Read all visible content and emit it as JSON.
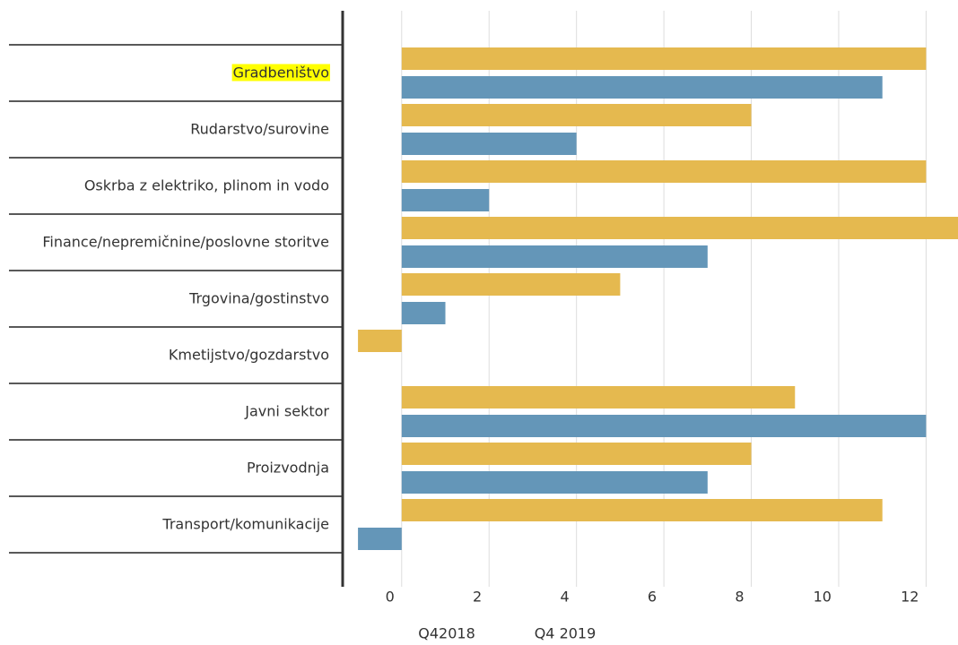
{
  "chart_data": {
    "type": "hbar",
    "categories": [
      "Gradbeništvo",
      "Rudarstvo/surovine",
      "Oskrba z elektriko, plinom in vodo",
      "Finance/nepremičnine/poslovne storitve",
      "Trgovina/gostinstvo",
      "Kmetijstvo/gozdarstvo",
      "Javni sektor",
      "Proizvodnja",
      "Transport/komunikacije"
    ],
    "series": [
      {
        "name": "Q42018",
        "color": "#e5b94f",
        "values": [
          12,
          8,
          12,
          13,
          5,
          -1,
          9,
          8,
          11
        ]
      },
      {
        "name": "Q4 2019",
        "color": "#6496b8",
        "values": [
          11,
          4,
          2,
          7,
          1,
          0,
          12,
          7,
          -1
        ]
      }
    ],
    "xlim": [
      -1.33,
      12.73
    ],
    "xticks": [
      0,
      2,
      4,
      6,
      8,
      10,
      12
    ],
    "grid": true
  }
}
